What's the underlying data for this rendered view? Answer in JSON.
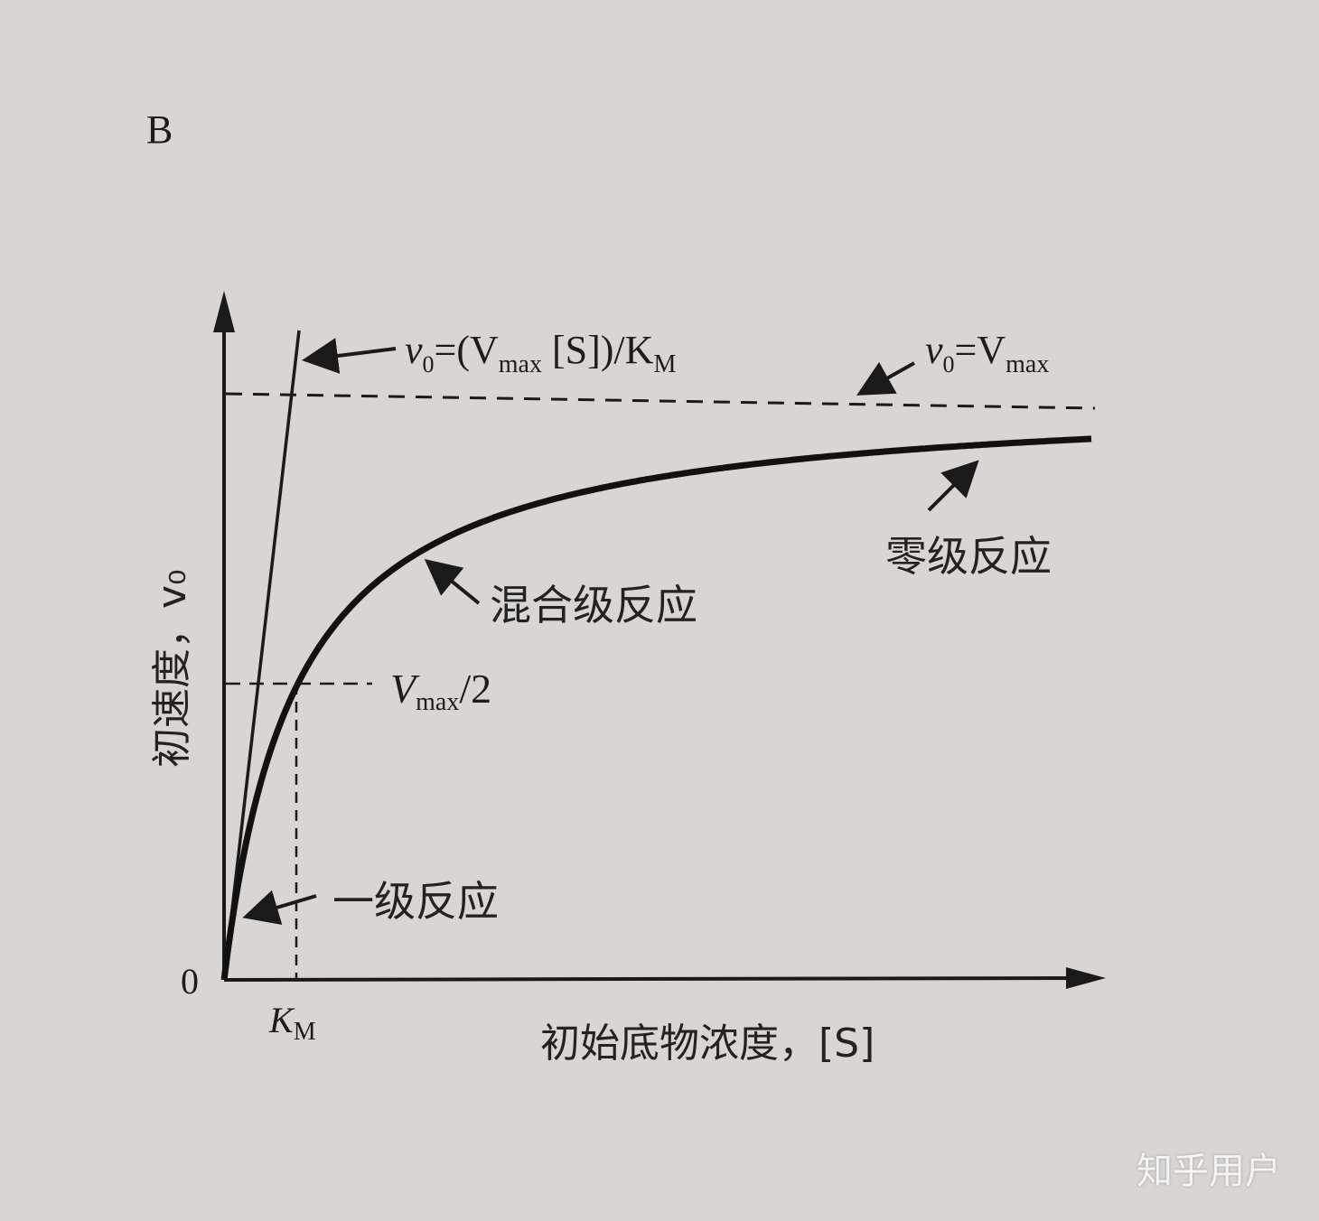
{
  "panel_label": "B",
  "y_axis_label": "初速度，v₀",
  "x_axis_label": "初始底物浓度，[S]",
  "origin_label": "0",
  "km_label": {
    "main": "K",
    "sub": "M"
  },
  "annotations": {
    "linear_eq": {
      "v": "v",
      "v_sub": "0",
      "mid": "=(V",
      "max": "max",
      "rest": " [S])/K",
      "m": "M"
    },
    "vmax_eq": {
      "v": "v",
      "v_sub": "0",
      "mid": "=V",
      "max": "max"
    },
    "half_vmax": {
      "v": "V",
      "max": "max",
      "rest": "/2"
    },
    "zero_order": "零级反应",
    "mixed_order": "混合级反应",
    "first_order": "一级反应"
  },
  "watermark": "知乎用户",
  "colors": {
    "paper": "#d8d5d2",
    "ink": "#1a1a1a"
  }
}
